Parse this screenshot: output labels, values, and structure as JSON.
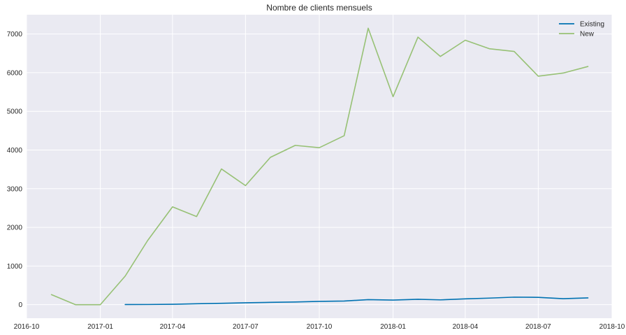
{
  "chart_data": {
    "type": "line",
    "title": "Nombre de clients mensuels",
    "xlabel": "",
    "ylabel": "",
    "grid": true,
    "legend_placement": "top-right",
    "xlim": [
      "2016-10-01",
      "2018-10-01"
    ],
    "ylim": [
      -350,
      7500
    ],
    "x_ticks": [
      "2016-10",
      "2017-01",
      "2017-04",
      "2017-07",
      "2017-10",
      "2018-01",
      "2018-04",
      "2018-07",
      "2018-10"
    ],
    "y_ticks": [
      0,
      1000,
      2000,
      3000,
      4000,
      5000,
      6000,
      7000
    ],
    "series": [
      {
        "name": "Existing",
        "color": "#0072b2",
        "x": [
          "2017-02-01",
          "2017-03-01",
          "2017-04-01",
          "2017-05-01",
          "2017-06-01",
          "2017-07-01",
          "2017-08-01",
          "2017-09-01",
          "2017-10-01",
          "2017-11-01",
          "2017-12-01",
          "2018-01-01",
          "2018-02-01",
          "2018-03-01",
          "2018-04-01",
          "2018-05-01",
          "2018-06-01",
          "2018-07-01",
          "2018-08-01",
          "2018-09-01"
        ],
        "values": [
          3,
          5,
          10,
          25,
          35,
          50,
          60,
          70,
          85,
          95,
          130,
          120,
          140,
          125,
          150,
          170,
          195,
          190,
          155,
          175
        ]
      },
      {
        "name": "New",
        "color": "#97c175",
        "x": [
          "2016-11-01",
          "2016-12-01",
          "2017-01-01",
          "2017-02-01",
          "2017-03-01",
          "2017-04-01",
          "2017-05-01",
          "2017-06-01",
          "2017-07-01",
          "2017-08-01",
          "2017-09-01",
          "2017-10-01",
          "2017-11-01",
          "2017-12-01",
          "2018-01-01",
          "2018-02-01",
          "2018-03-01",
          "2018-04-01",
          "2018-05-01",
          "2018-06-01",
          "2018-07-01",
          "2018-08-01",
          "2018-09-01"
        ],
        "values": [
          260,
          0,
          0,
          740,
          1660,
          2530,
          2280,
          3510,
          3080,
          3810,
          4120,
          4060,
          4370,
          7150,
          5380,
          6920,
          6420,
          6840,
          6620,
          6550,
          5910,
          5990,
          6160
        ]
      }
    ]
  }
}
